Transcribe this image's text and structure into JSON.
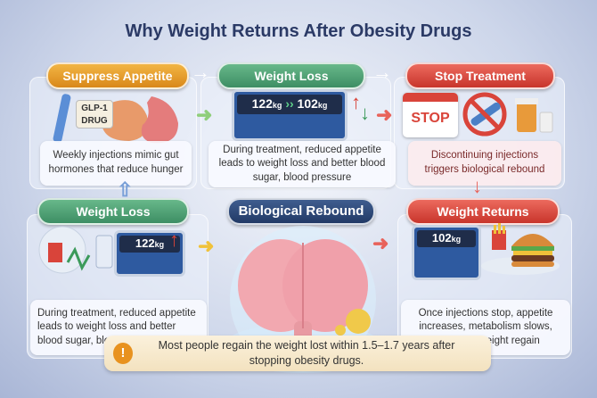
{
  "title": "Why Weight Returns After Obesity Drugs",
  "top_row": [
    {
      "label": "Suppress Appetite",
      "color": "#e09a2a",
      "drug_label": "GLP-1 DRUG",
      "text": "Weekly injections mimic gut hormones that reduce hunger"
    },
    {
      "label": "Weight Loss",
      "color": "#4d9f72",
      "scale_from": "122",
      "scale_to": "102",
      "unit": "kg",
      "text": "During treatment, reduced appetite leads to weight loss and better blood sugar, blood pressure"
    },
    {
      "label": "Stop Treatment",
      "color": "#d9443a",
      "stop_label": "STOP",
      "text": "Discontinuing injections triggers biological rebound"
    }
  ],
  "bottom_row": [
    {
      "label": "Weight Loss",
      "color": "#4d9f72",
      "scale_value": "122",
      "unit": "kg",
      "text": "During treatment, reduced appetite leads to weight loss and better blood sugar, blood pressure"
    },
    {
      "label": "Biological Rebound",
      "color": "#2e4a7a"
    },
    {
      "label": "Weight Returns",
      "color": "#d9443a",
      "scale_value": "102",
      "unit": "kg",
      "text": "Once injections stop, appetite increases, metabolism slows, leading to weight regain"
    }
  ],
  "callout": {
    "icon": "exclamation-icon",
    "text": "Most people regain the weight lost within 1.5–1.7 years after stopping obesity drugs."
  }
}
